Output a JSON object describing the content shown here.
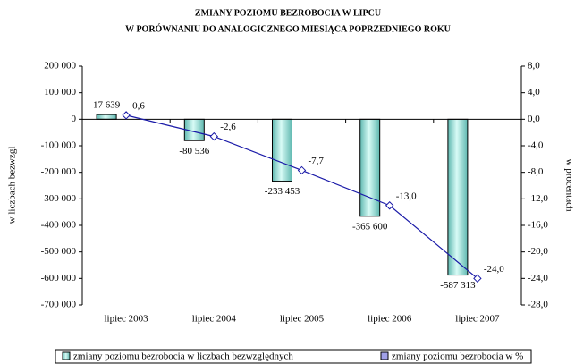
{
  "chart_data": {
    "type": "bar-line",
    "title": [
      "ZMIANY POZIOMU BEZROBOCIA W LIPCU",
      "W PORÓWNANIU DO ANALOGICZNEGO MIESIĄCA POPRZEDNIEGO ROKU"
    ],
    "ylabel": "w liczbach bezwzgl",
    "y2label": "w procentach",
    "categories": [
      "lipiec 2003",
      "lipiec 2004",
      "lipiec 2005",
      "lipiec 2006",
      "lipiec 2007"
    ],
    "series": [
      {
        "name": "zmiany poziomu bezrobocia w liczbach bezwzględnych",
        "type": "bar",
        "color": "#9fe0d8",
        "values": [
          17639,
          -80536,
          -233453,
          -365600,
          -587313
        ],
        "value_labels": [
          "17 639",
          "-80 536",
          "-233 453",
          "-365 600",
          "-587 313"
        ]
      },
      {
        "name": "zmiany poziomu bezrobocia w %",
        "type": "line",
        "axis": "y2",
        "color": "#1a1aa8",
        "values": [
          0.6,
          -2.6,
          -7.7,
          -13.0,
          -24.0
        ],
        "value_labels": [
          "0,6",
          "-2,6",
          "-7,7",
          "-13,0",
          "-24,0"
        ]
      }
    ],
    "ylim": [
      -700000,
      200000
    ],
    "yticks": [
      {
        "value": -700000,
        "label": "-700 000"
      },
      {
        "value": -600000,
        "label": "-600 000"
      },
      {
        "value": -500000,
        "label": "-500 000"
      },
      {
        "value": -400000,
        "label": "-400 000"
      },
      {
        "value": -300000,
        "label": "-300 000"
      },
      {
        "value": -200000,
        "label": "-200 000"
      },
      {
        "value": -100000,
        "label": "-100 000"
      },
      0,
      {
        "value": 100000,
        "label": "100 000"
      },
      {
        "value": 200000,
        "label": "200 000"
      }
    ],
    "y2lim": [
      -28,
      8
    ],
    "y2ticks": [
      {
        "value": -28,
        "label": "-28,0"
      },
      {
        "value": -24,
        "label": "-24,0"
      },
      {
        "value": -20,
        "label": "-20,0"
      },
      {
        "value": -16,
        "label": "-16,0"
      },
      {
        "value": -12,
        "label": "-12,0"
      },
      {
        "value": -8,
        "label": "-8,0"
      },
      {
        "value": -4,
        "label": "-4,0"
      },
      {
        "value": 0,
        "label": "0,0"
      },
      {
        "value": 4,
        "label": "4,0"
      },
      {
        "value": 8,
        "label": "8,0"
      }
    ],
    "grid": false,
    "legend": "bottom"
  }
}
